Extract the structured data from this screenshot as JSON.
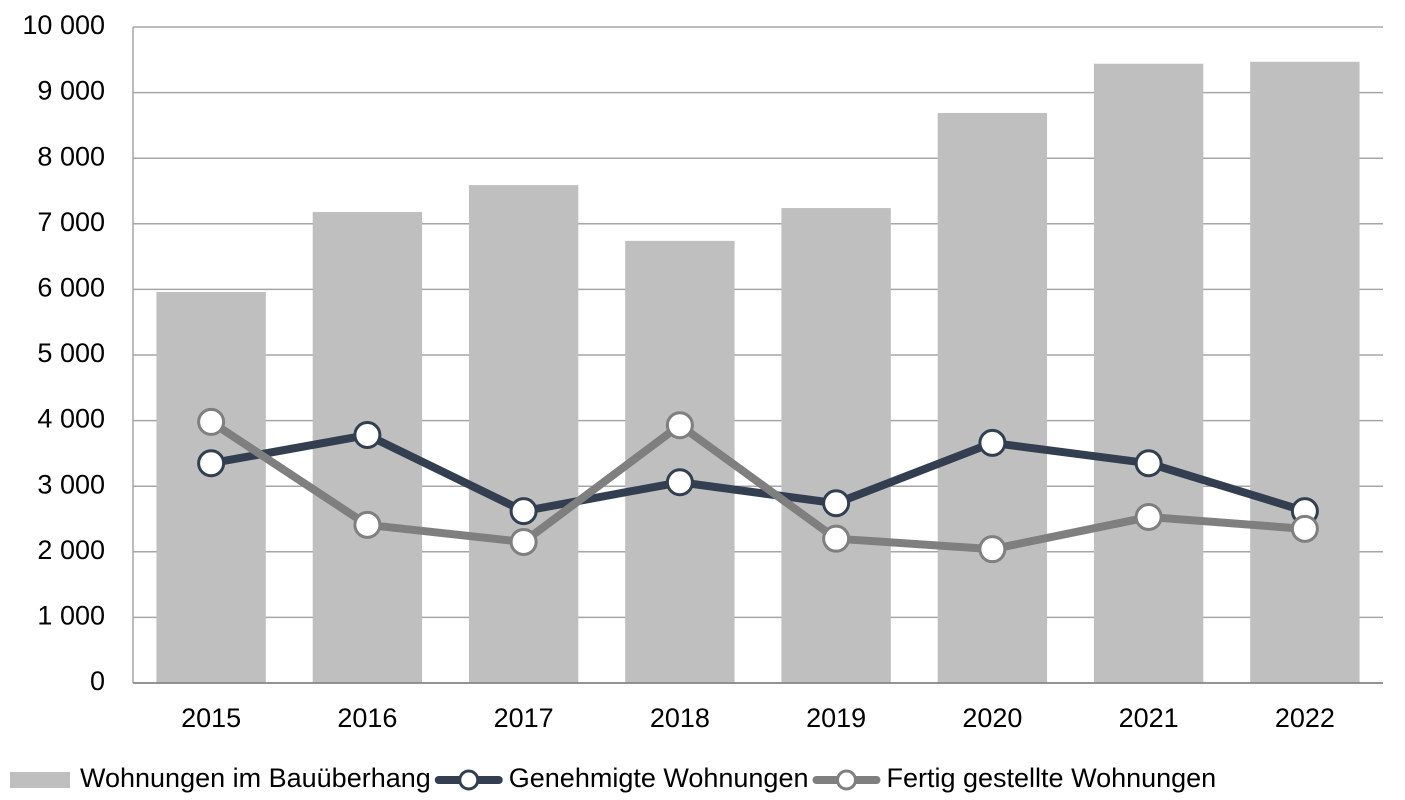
{
  "chart_data": {
    "type": "combo",
    "categories": [
      "2015",
      "2016",
      "2017",
      "2018",
      "2019",
      "2020",
      "2021",
      "2022"
    ],
    "series": [
      {
        "name": "Wohnungen im Bauüberhang",
        "type": "bar",
        "color": "#bfbfbf",
        "values": [
          5960,
          7180,
          7590,
          6740,
          7240,
          8690,
          9440,
          9470
        ]
      },
      {
        "name": "Genehmigte Wohnungen",
        "type": "line",
        "color": "#333f50",
        "values": [
          3350,
          3780,
          2620,
          3060,
          2740,
          3660,
          3350,
          2620
        ]
      },
      {
        "name": "Fertig gestellte Wohnungen",
        "type": "line",
        "color": "#7f7f7f",
        "values": [
          3980,
          2410,
          2150,
          3930,
          2200,
          2040,
          2530,
          2350
        ]
      }
    ],
    "ylim": [
      0,
      10000
    ],
    "yticks": [
      0,
      {
        "value": 1000,
        "label": "1 000"
      },
      {
        "value": 2000,
        "label": "2 000"
      },
      {
        "value": 3000,
        "label": "3 000"
      },
      {
        "value": 4000,
        "label": "4 000"
      },
      {
        "value": 5000,
        "label": "5 000"
      },
      {
        "value": 6000,
        "label": "6 000"
      },
      {
        "value": 7000,
        "label": "7 000"
      },
      {
        "value": 8000,
        "label": "8 000"
      },
      {
        "value": 9000,
        "label": "9 000"
      },
      {
        "value": 10000,
        "label": "10 000"
      }
    ],
    "grid": true,
    "legend": "bottom"
  }
}
